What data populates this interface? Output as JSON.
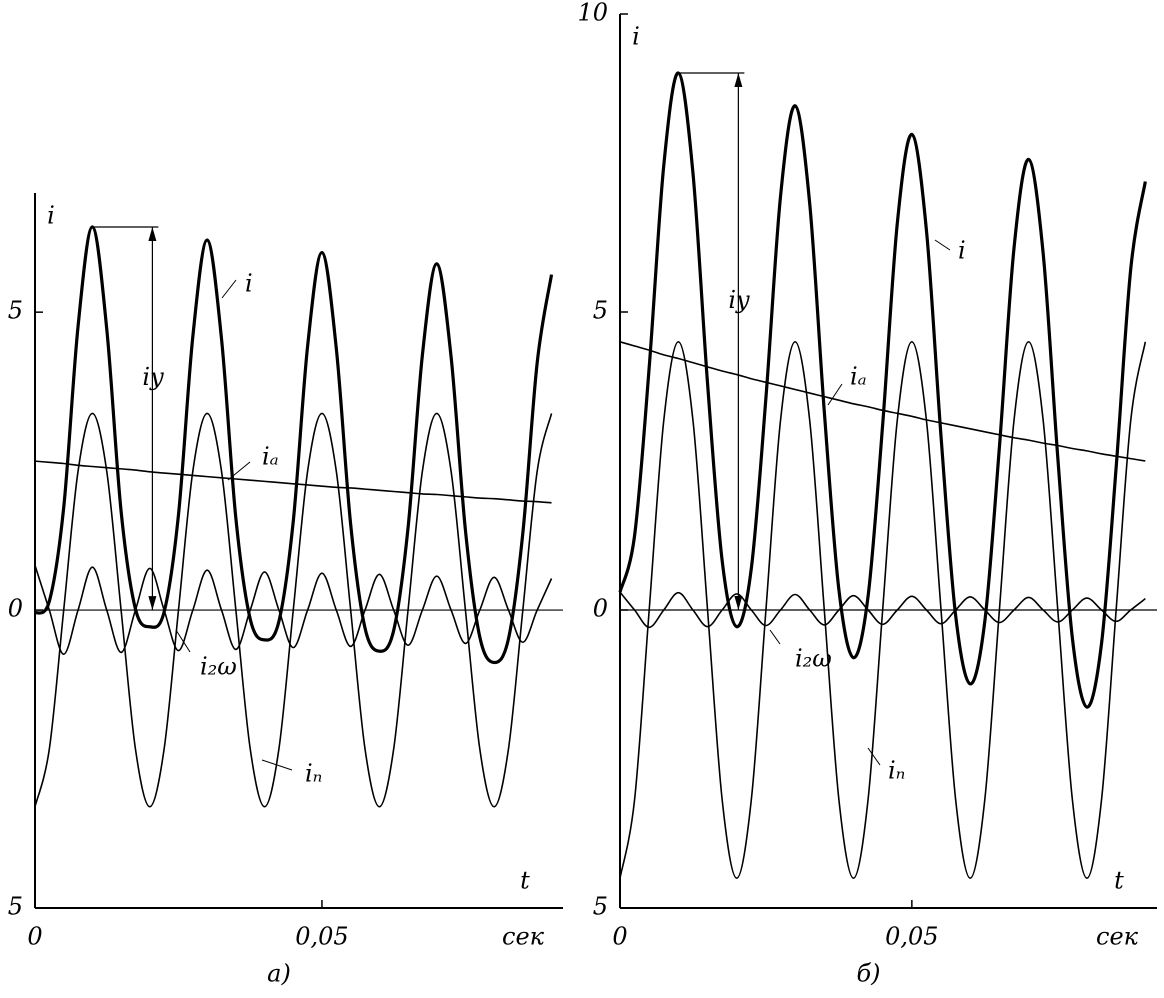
{
  "chart_data": [
    {
      "type": "line",
      "caption": "а)",
      "ylabel": "i",
      "xlabel": "t",
      "xunit": "сек",
      "annotation": "iy",
      "x": [
        0,
        0.0025,
        0.005,
        0.0075,
        0.01,
        0.0125,
        0.015,
        0.0175,
        0.02,
        0.0225,
        0.025,
        0.0275,
        0.03,
        0.0325,
        0.035,
        0.0375,
        0.04,
        0.0425,
        0.045,
        0.0475,
        0.05,
        0.0525,
        0.055,
        0.0575,
        0.06,
        0.0625,
        0.065,
        0.0675,
        0.07,
        0.0725,
        0.075,
        0.0775,
        0.08,
        0.0825,
        0.085,
        0.0875,
        0.09
      ],
      "series": [
        {
          "name": "i",
          "color": "#000000",
          "values": [
            -0.05,
            0.15,
            1.72,
            4.76,
            6.43,
            4.72,
            1.66,
            0.02,
            -0.28,
            -0.03,
            1.6,
            4.59,
            6.21,
            4.55,
            1.54,
            -0.15,
            -0.5,
            -0.19,
            1.49,
            4.43,
            6.0,
            4.39,
            1.44,
            -0.3,
            -0.69,
            -0.34,
            1.38,
            4.28,
            5.81,
            4.25,
            1.34,
            -0.45,
            -0.88,
            -0.48,
            1.29,
            4.15,
            5.63
          ]
        },
        {
          "name": "iₐ",
          "color": "#000000",
          "values": [
            2.5,
            2.48,
            2.46,
            2.43,
            2.41,
            2.39,
            2.37,
            2.35,
            2.32,
            2.3,
            2.28,
            2.26,
            2.24,
            2.22,
            2.2,
            2.18,
            2.16,
            2.14,
            2.12,
            2.1,
            2.08,
            2.06,
            2.05,
            2.03,
            2.01,
            1.99,
            1.97,
            1.95,
            1.94,
            1.92,
            1.9,
            1.88,
            1.87,
            1.85,
            1.83,
            1.82,
            1.8
          ]
        },
        {
          "name": "iₙ",
          "color": "#000000",
          "values": [
            -3.3,
            -2.33,
            0,
            2.33,
            3.3,
            2.33,
            0,
            -2.33,
            -3.3,
            -2.33,
            0,
            2.33,
            3.3,
            2.33,
            0,
            -2.33,
            -3.3,
            -2.33,
            0,
            2.33,
            3.3,
            2.33,
            0,
            -2.33,
            -3.3,
            -2.33,
            0,
            2.33,
            3.3,
            2.33,
            0,
            -2.33,
            -3.3,
            -2.33,
            0,
            2.33,
            3.3
          ]
        },
        {
          "name": "i₂ω",
          "color": "#000000",
          "values": [
            0.75,
            0,
            -0.74,
            0,
            0.72,
            0,
            -0.71,
            0,
            0.7,
            0,
            -0.68,
            0,
            0.67,
            0,
            -0.66,
            0,
            0.64,
            0,
            -0.63,
            0,
            0.62,
            0,
            -0.61,
            0,
            0.6,
            0,
            -0.59,
            0,
            0.57,
            0,
            -0.56,
            0,
            0.55,
            0,
            -0.54,
            0,
            0.53
          ]
        }
      ],
      "xlim": [
        0,
        0.092
      ],
      "xticks": [
        0,
        {
          "value": 0.05,
          "label": "0,05"
        }
      ],
      "ylim": [
        -5,
        7
      ],
      "yticks": [
        {
          "value": -5,
          "label": "5"
        },
        0,
        5
      ]
    },
    {
      "type": "line",
      "caption": "б)",
      "ylabel": "i",
      "xlabel": "t",
      "xunit": "сек",
      "annotation": "iy",
      "x": [
        0,
        0.0025,
        0.005,
        0.0075,
        0.01,
        0.0125,
        0.015,
        0.0175,
        0.02,
        0.0225,
        0.025,
        0.0275,
        0.03,
        0.0325,
        0.035,
        0.0375,
        0.04,
        0.0425,
        0.045,
        0.0475,
        0.05,
        0.0525,
        0.055,
        0.0575,
        0.06,
        0.0625,
        0.065,
        0.0675,
        0.07,
        0.0725,
        0.075,
        0.0775,
        0.08,
        0.0825,
        0.085,
        0.0875,
        0.09
      ],
      "series": [
        {
          "name": "i",
          "color": "#000000",
          "values": [
            0.3,
            1.25,
            4.07,
            7.46,
            9.01,
            7.33,
            3.8,
            0.83,
            -0.28,
            0.7,
            3.56,
            6.94,
            8.46,
            6.82,
            3.33,
            0.34,
            -0.8,
            0.23,
            3.11,
            6.48,
            7.98,
            6.37,
            2.91,
            -0.09,
            -1.24,
            -0.19,
            2.73,
            6.07,
            7.56,
            5.98,
            2.56,
            -0.47,
            -1.63,
            -0.56,
            2.39,
            5.72,
            7.19
          ]
        },
        {
          "name": "iₐ",
          "color": "#000000",
          "values": [
            4.5,
            4.43,
            4.36,
            4.28,
            4.22,
            4.15,
            4.08,
            4.01,
            3.95,
            3.88,
            3.82,
            3.76,
            3.7,
            3.64,
            3.58,
            3.52,
            3.46,
            3.41,
            3.35,
            3.3,
            3.25,
            3.19,
            3.14,
            3.09,
            3.04,
            2.99,
            2.94,
            2.89,
            2.85,
            2.8,
            2.76,
            2.71,
            2.67,
            2.62,
            2.58,
            2.54,
            2.5
          ]
        },
        {
          "name": "iₙ",
          "color": "#000000",
          "values": [
            -4.5,
            -3.18,
            0,
            3.18,
            4.5,
            3.18,
            0,
            -3.18,
            -4.5,
            -3.18,
            0,
            3.18,
            4.5,
            3.18,
            0,
            -3.18,
            -4.5,
            -3.18,
            0,
            3.18,
            4.5,
            3.18,
            0,
            -3.18,
            -4.5,
            -3.18,
            0,
            3.18,
            4.5,
            3.18,
            0,
            -3.18,
            -4.5,
            -3.18,
            0,
            3.18,
            4.5
          ]
        },
        {
          "name": "i₂ω",
          "color": "#000000",
          "values": [
            0.3,
            0,
            -0.29,
            0,
            0.29,
            0,
            -0.28,
            0,
            0.27,
            0,
            -0.26,
            0,
            0.26,
            0,
            -0.25,
            0,
            0.24,
            0,
            -0.24,
            0,
            0.23,
            0,
            -0.23,
            0,
            0.22,
            0,
            -0.21,
            0,
            0.21,
            0,
            -0.2,
            0,
            0.2,
            0,
            -0.19,
            0,
            0.19
          ]
        }
      ],
      "xlim": [
        0,
        0.092
      ],
      "xticks": [
        0,
        {
          "value": 0.05,
          "label": "0,05"
        }
      ],
      "ylim": [
        -5,
        10
      ],
      "yticks": [
        {
          "value": -5,
          "label": "5"
        },
        0,
        5,
        10
      ]
    }
  ]
}
